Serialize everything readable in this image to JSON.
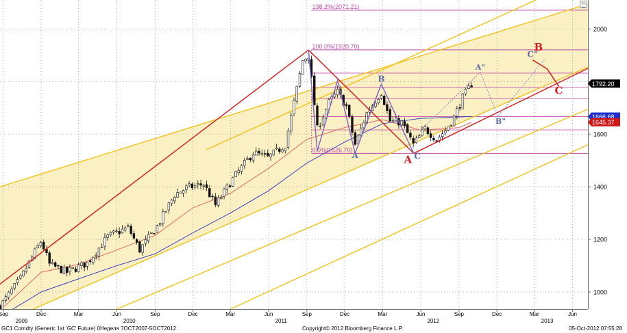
{
  "chart_data": {
    "type": "candlestick",
    "instrument": "GC1 Comdty (Generic 1st 'GC' Future) 0Неделя 7OCT2007-5OCT2012",
    "copyright": "Copyright© 2012 Bloomberg Finance L.P.",
    "timestamp": "05-Oct-2012 07:55:28",
    "y_axis": {
      "ticks": [
        1000,
        1200,
        1400,
        1600,
        1800,
        2000
      ],
      "ylim": [
        935,
        2110
      ],
      "side": "right"
    },
    "x_axis": {
      "range": [
        "2009-08-24",
        "2013-07-08"
      ],
      "month_ticks": [
        {
          "date": "2009-09-01",
          "label": "Sep"
        },
        {
          "date": "2009-12-01",
          "label": "Dec"
        },
        {
          "date": "2010-03-01",
          "label": "Mar"
        },
        {
          "date": "2010-06-01",
          "label": "Jun"
        },
        {
          "date": "2010-09-01",
          "label": "Sep"
        },
        {
          "date": "2010-12-01",
          "label": "Dec"
        },
        {
          "date": "2011-03-01",
          "label": "Mar"
        },
        {
          "date": "2011-06-01",
          "label": "Jun"
        },
        {
          "date": "2011-09-01",
          "label": "Sep"
        },
        {
          "date": "2011-12-01",
          "label": "Dec"
        },
        {
          "date": "2012-03-01",
          "label": "Mar"
        },
        {
          "date": "2012-06-01",
          "label": "Jun"
        },
        {
          "date": "2012-09-01",
          "label": "Sep"
        },
        {
          "date": "2012-12-01",
          "label": "Dec"
        },
        {
          "date": "2013-03-01",
          "label": "Mar"
        },
        {
          "date": "2013-06-01",
          "label": "Jun"
        }
      ],
      "year_labels": [
        {
          "date": "2009-10-15",
          "label": "2009"
        },
        {
          "date": "2010-07-01",
          "label": "2010"
        },
        {
          "date": "2011-07-01",
          "label": "2011"
        },
        {
          "date": "2012-07-01",
          "label": "2012"
        },
        {
          "date": "2013-04-01",
          "label": "2013"
        }
      ]
    },
    "grid": true,
    "price_markers": [
      {
        "value": 1792.2,
        "label": "1792.20",
        "bg": "#000000",
        "fg": "#ffffff"
      },
      {
        "value": 1666.68,
        "label": "1666.68",
        "bg": "#1f2fd0",
        "fg": "#ffffff"
      },
      {
        "value": 1645.37,
        "label": "1645.37",
        "bg": "#d01818",
        "fg": "#ffffff"
      }
    ],
    "fib_levels": [
      {
        "value": 2071.21,
        "label": "138.2%(2071.21)"
      },
      {
        "value": 1920.7,
        "label": "100.0%(1920.70)"
      },
      {
        "value": 1526.7,
        "label": "0.0%(1526.70)"
      }
    ],
    "fib_interior_levels": [
      1832,
      1778,
      1734,
      1667,
      1616
    ],
    "fib_range": [
      "2011-09-12",
      "2013-07-08"
    ],
    "channel_band": {
      "upper": [
        [
          "2009-08-24",
          1400
        ],
        [
          "2013-07-08",
          2095
        ]
      ],
      "lower": [
        [
          "2009-08-24",
          880
        ],
        [
          "2013-07-08",
          1855
        ]
      ],
      "fill": "#fbf0c4"
    },
    "channel_lines": [
      [
        [
          "2009-08-24",
          1400
        ],
        [
          "2013-07-08",
          2095
        ]
      ],
      [
        [
          "2009-08-24",
          880
        ],
        [
          "2013-07-08",
          1855
        ]
      ],
      [
        [
          "2011-01-01",
          1540
        ],
        [
          "2013-07-08",
          2200
        ]
      ],
      [
        [
          "2010-06-01",
          935
        ],
        [
          "2013-07-08",
          1695
        ]
      ],
      [
        [
          "2011-03-01",
          935
        ],
        [
          "2013-07-08",
          1560
        ]
      ]
    ],
    "trend_lines": [
      {
        "color": "#d42323",
        "points": [
          [
            "2009-08-24",
            1030
          ],
          [
            "2011-09-05",
            1920
          ]
        ]
      },
      {
        "color": "#d42323",
        "points": [
          [
            "2011-09-05",
            1920
          ],
          [
            "2012-05-15",
            1527
          ]
        ]
      },
      {
        "color": "#d42323",
        "points": [
          [
            "2012-05-15",
            1527
          ],
          [
            "2013-07-08",
            1850
          ]
        ]
      }
    ],
    "projection_lines": [
      {
        "color": "#d42323",
        "points": [
          [
            "2013-02-25",
            1882
          ],
          [
            "2013-04-01",
            1848
          ],
          [
            "2013-04-29",
            1782
          ]
        ]
      },
      {
        "color": "#7b7fc8",
        "dashed": true,
        "points": [
          [
            "2012-06-01",
            1615
          ],
          [
            "2012-10-22",
            1835
          ],
          [
            "2012-12-03",
            1668
          ],
          [
            "2013-03-25",
            1883
          ]
        ]
      }
    ],
    "harmonic_pattern": {
      "color": "#7f69c2",
      "points": [
        [
          "2011-09-05",
          1920
        ],
        [
          "2011-09-26",
          1535
        ],
        [
          "2011-11-14",
          1805
        ],
        [
          "2011-12-26",
          1527
        ],
        [
          "2012-02-27",
          1790
        ],
        [
          "2012-05-15",
          1527
        ]
      ]
    },
    "moving_averages": [
      {
        "color": "#e06868",
        "points": [
          [
            "2009-08-24",
            930
          ],
          [
            "2009-12-01",
            1075
          ],
          [
            "2010-03-01",
            1105
          ],
          [
            "2010-06-01",
            1160
          ],
          [
            "2010-09-01",
            1215
          ],
          [
            "2010-12-01",
            1320
          ],
          [
            "2011-03-01",
            1375
          ],
          [
            "2011-06-01",
            1470
          ],
          [
            "2011-09-01",
            1580
          ],
          [
            "2011-12-01",
            1625
          ],
          [
            "2012-03-01",
            1655
          ],
          [
            "2012-06-01",
            1615
          ],
          [
            "2012-09-01",
            1625
          ],
          [
            "2012-10-01",
            1645
          ]
        ]
      },
      {
        "color": "#3b3fbf",
        "points": [
          [
            "2009-08-24",
            905
          ],
          [
            "2009-12-01",
            1000
          ],
          [
            "2010-03-01",
            1050
          ],
          [
            "2010-06-01",
            1100
          ],
          [
            "2010-09-01",
            1145
          ],
          [
            "2010-12-01",
            1225
          ],
          [
            "2011-03-01",
            1300
          ],
          [
            "2011-06-01",
            1385
          ],
          [
            "2011-09-01",
            1490
          ],
          [
            "2011-12-01",
            1570
          ],
          [
            "2012-03-01",
            1640
          ],
          [
            "2012-06-01",
            1660
          ],
          [
            "2012-09-01",
            1665
          ],
          [
            "2012-10-01",
            1667
          ]
        ]
      }
    ],
    "price_path": [
      [
        "2009-08-24",
        945
      ],
      [
        "2009-10-12",
        1050
      ],
      [
        "2009-12-01",
        1195
      ],
      [
        "2009-12-21",
        1105
      ],
      [
        "2010-02-01",
        1075
      ],
      [
        "2010-03-22",
        1110
      ],
      [
        "2010-05-10",
        1210
      ],
      [
        "2010-06-28",
        1245
      ],
      [
        "2010-07-26",
        1160
      ],
      [
        "2010-09-06",
        1250
      ],
      [
        "2010-10-18",
        1370
      ],
      [
        "2010-11-15",
        1395
      ],
      [
        "2010-12-27",
        1410
      ],
      [
        "2011-01-24",
        1330
      ],
      [
        "2011-03-07",
        1430
      ],
      [
        "2011-04-25",
        1530
      ],
      [
        "2011-05-30",
        1510
      ],
      [
        "2011-07-11",
        1560
      ],
      [
        "2011-08-22",
        1880
      ],
      [
        "2011-09-05",
        1900
      ],
      [
        "2011-09-26",
        1620
      ],
      [
        "2011-10-24",
        1720
      ],
      [
        "2011-11-14",
        1760
      ],
      [
        "2011-12-05",
        1705
      ],
      [
        "2011-12-26",
        1560
      ],
      [
        "2012-01-23",
        1680
      ],
      [
        "2012-02-27",
        1760
      ],
      [
        "2012-03-19",
        1650
      ],
      [
        "2012-04-16",
        1645
      ],
      [
        "2012-05-14",
        1560
      ],
      [
        "2012-06-11",
        1620
      ],
      [
        "2012-07-09",
        1580
      ],
      [
        "2012-07-30",
        1615
      ],
      [
        "2012-08-20",
        1665
      ],
      [
        "2012-09-10",
        1740
      ],
      [
        "2012-10-01",
        1790
      ]
    ],
    "wave_labels": [
      {
        "text": "A",
        "date": "2011-12-26",
        "value": 1510,
        "color": "#5b6aa8",
        "size": 12,
        "anchor": "middle"
      },
      {
        "text": "B",
        "date": "2012-02-27",
        "value": 1800,
        "color": "#5b6aa8",
        "size": 12,
        "anchor": "middle"
      },
      {
        "text": "C",
        "date": "2012-05-24",
        "value": 1505,
        "color": "#5b6aa8",
        "size": 12,
        "anchor": "middle"
      },
      {
        "text": "A",
        "date": "2012-05-01",
        "value": 1490,
        "color": "#d42323",
        "size": 15,
        "anchor": "middle"
      },
      {
        "text": "A\"",
        "date": "2012-10-22",
        "value": 1845,
        "color": "#5b6aa8",
        "size": 11,
        "anchor": "middle"
      },
      {
        "text": "B\"",
        "date": "2012-12-10",
        "value": 1640,
        "color": "#5b6aa8",
        "size": 11,
        "anchor": "middle"
      },
      {
        "text": "C\"",
        "date": "2013-02-25",
        "value": 1893,
        "color": "#5b6aa8",
        "size": 12,
        "anchor": "middle"
      },
      {
        "text": "B",
        "date": "2013-03-11",
        "value": 1917,
        "color": "#d42323",
        "size": 15,
        "anchor": "middle"
      },
      {
        "text": "C",
        "date": "2013-04-29",
        "value": 1752,
        "color": "#d42323",
        "size": 15,
        "anchor": "middle"
      }
    ]
  }
}
